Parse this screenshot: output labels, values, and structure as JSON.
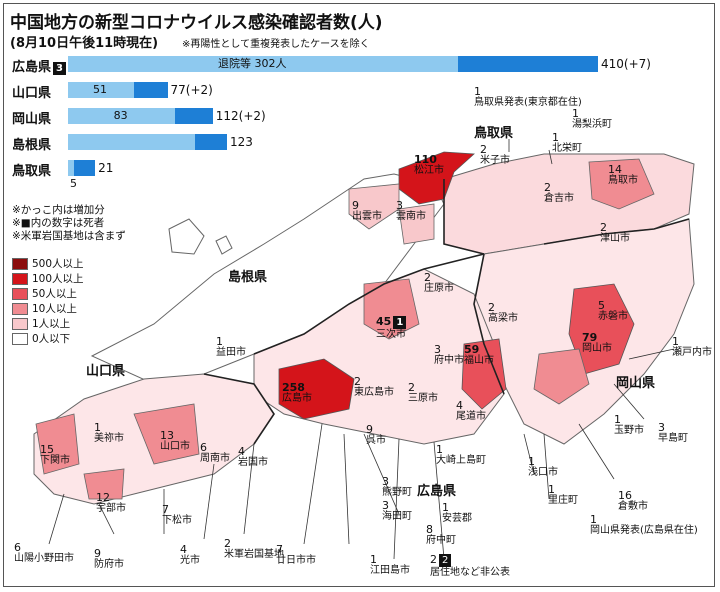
{
  "title": "中国地方の新型コロナウイルス感染確認者数(人)",
  "subtitle": "(8月10日午後11時現在)",
  "note": "※再陽性として重複発表したケースを除く",
  "bars": [
    {
      "name": "広島県",
      "badge": "3",
      "light_value": 302,
      "light_label": "退院等 302人",
      "total_label": "410(+7)",
      "total": 410
    },
    {
      "name": "山口県",
      "badge": "",
      "light_value": 51,
      "light_label": "51",
      "total_label": "77(+2)",
      "total": 77
    },
    {
      "name": "岡山県",
      "badge": "",
      "light_value": 83,
      "light_label": "83",
      "total_label": "112(+2)",
      "total": 112
    },
    {
      "name": "島根県",
      "badge": "",
      "light_value": 98,
      "light_label": "",
      "total_label": "123",
      "total": 123
    },
    {
      "name": "鳥取県",
      "badge": "",
      "light_value": 5,
      "light_label": "",
      "total_label": "21",
      "total": 21,
      "below_label": "5"
    }
  ],
  "notes": [
    "※かっこ内は増加分",
    "※■内の数字は死者",
    "※米軍岩国基地は含まず"
  ],
  "legend": [
    {
      "label": "500人以上",
      "color": "#8b0d0d"
    },
    {
      "label": "100人以上",
      "color": "#d4141a"
    },
    {
      "label": "50人以上",
      "color": "#e8505a"
    },
    {
      "label": "10人以上",
      "color": "#f08c92"
    },
    {
      "label": "1人以上",
      "color": "#f8c8cb"
    },
    {
      "label": "0人以下",
      "color": "#ffffff"
    }
  ],
  "prefectures": {
    "tottori": "鳥取県",
    "shimane": "島根県",
    "yamaguchi": "山口県",
    "okayama": "岡山県",
    "hiroshima": "広島県"
  },
  "places": [
    {
      "n": "1",
      "t": "鳥取県発表(東京都在住)"
    },
    {
      "n": "1",
      "t": "湯梨浜町"
    },
    {
      "n": "1",
      "t": "北栄町"
    },
    {
      "n": "2",
      "t": "米子市"
    },
    {
      "n": "110",
      "t": "松江市"
    },
    {
      "n": "14",
      "t": "鳥取市"
    },
    {
      "n": "2",
      "t": "倉吉市"
    },
    {
      "n": "9",
      "t": "出雲市"
    },
    {
      "n": "3",
      "t": "雲南市"
    },
    {
      "n": "2",
      "t": "津山市"
    },
    {
      "n": "2",
      "t": "庄原市"
    },
    {
      "n": "2",
      "t": "高梁市"
    },
    {
      "n": "5",
      "t": "赤磐市"
    },
    {
      "n": "45",
      "t": "三次市",
      "badge": "1"
    },
    {
      "n": "79",
      "t": "岡山市"
    },
    {
      "n": "1",
      "t": "瀬戸内市"
    },
    {
      "n": "1",
      "t": "益田市"
    },
    {
      "n": "3",
      "t": "府中市"
    },
    {
      "n": "59",
      "t": "福山市"
    },
    {
      "n": "258",
      "t": "広島市"
    },
    {
      "n": "2",
      "t": "東広島市"
    },
    {
      "n": "2",
      "t": "三原市"
    },
    {
      "n": "4",
      "t": "尾道市"
    },
    {
      "n": "1",
      "t": "美祢市"
    },
    {
      "n": "13",
      "t": "山口市"
    },
    {
      "n": "6",
      "t": "周南市"
    },
    {
      "n": "4",
      "t": "岩国市"
    },
    {
      "n": "9",
      "t": "呉市"
    },
    {
      "n": "1",
      "t": "大崎上島町"
    },
    {
      "n": "1",
      "t": "浅口市"
    },
    {
      "n": "1",
      "t": "玉野市"
    },
    {
      "n": "3",
      "t": "早島町"
    },
    {
      "n": "15",
      "t": "下関市"
    },
    {
      "n": "12",
      "t": "宇部市"
    },
    {
      "n": "3",
      "t": "熊野町"
    },
    {
      "n": "1",
      "t": "里庄町"
    },
    {
      "n": "16",
      "t": "倉敷市"
    },
    {
      "n": "7",
      "t": "下松市"
    },
    {
      "n": "3",
      "t": "海田町"
    },
    {
      "n": "1",
      "t": "安芸郡"
    },
    {
      "n": "8",
      "t": "府中町"
    },
    {
      "n": "1",
      "t": "岡山県発表(広島県在住)"
    },
    {
      "n": "6",
      "t": "山陽小野田市"
    },
    {
      "n": "9",
      "t": "防府市"
    },
    {
      "n": "4",
      "t": "光市"
    },
    {
      "n": "2",
      "t": "米軍岩国基地"
    },
    {
      "n": "7",
      "t": "廿日市市"
    },
    {
      "n": "1",
      "t": "江田島市"
    },
    {
      "n": "2",
      "t": "居住地など非公表",
      "badge": "2"
    }
  ]
}
